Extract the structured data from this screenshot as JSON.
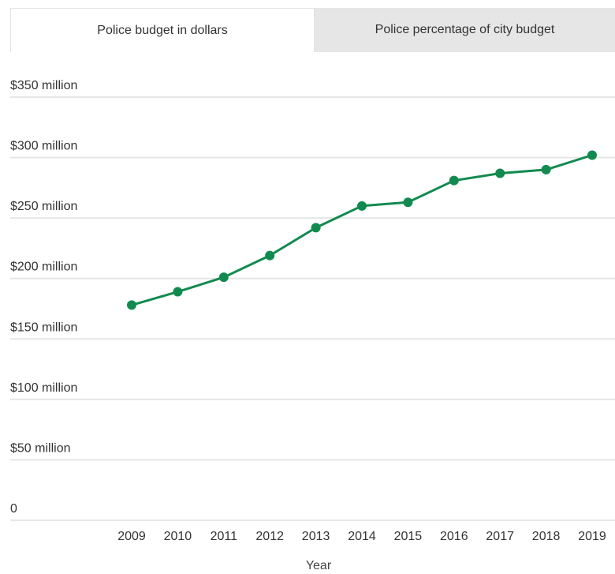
{
  "tabs": [
    {
      "label": "Police budget in dollars",
      "active": true
    },
    {
      "label": "Police percentage of city budget",
      "active": false
    }
  ],
  "colors": {
    "line": "#128a4f",
    "grid": "#e6e6e6",
    "tab_inactive": "#e6e6e6"
  },
  "chart_data": {
    "type": "line",
    "xlabel": "Year",
    "ylabel": "",
    "ylim": [
      0,
      350
    ],
    "grid": true,
    "y_ticks": [
      {
        "value": 0,
        "label": "0"
      },
      {
        "value": 50,
        "label": "$50 million"
      },
      {
        "value": 100,
        "label": "$100 million"
      },
      {
        "value": 150,
        "label": "$150 million"
      },
      {
        "value": 200,
        "label": "$200 million"
      },
      {
        "value": 250,
        "label": "$250 million"
      },
      {
        "value": 300,
        "label": "$300 million"
      },
      {
        "value": 350,
        "label": "$350 million"
      }
    ],
    "categories": [
      "2009",
      "2010",
      "2011",
      "2012",
      "2013",
      "2014",
      "2015",
      "2016",
      "2017",
      "2018",
      "2019"
    ],
    "series": [
      {
        "values": [
          178,
          189,
          201,
          219,
          242,
          260,
          263,
          281,
          287,
          290,
          302
        ]
      }
    ]
  }
}
